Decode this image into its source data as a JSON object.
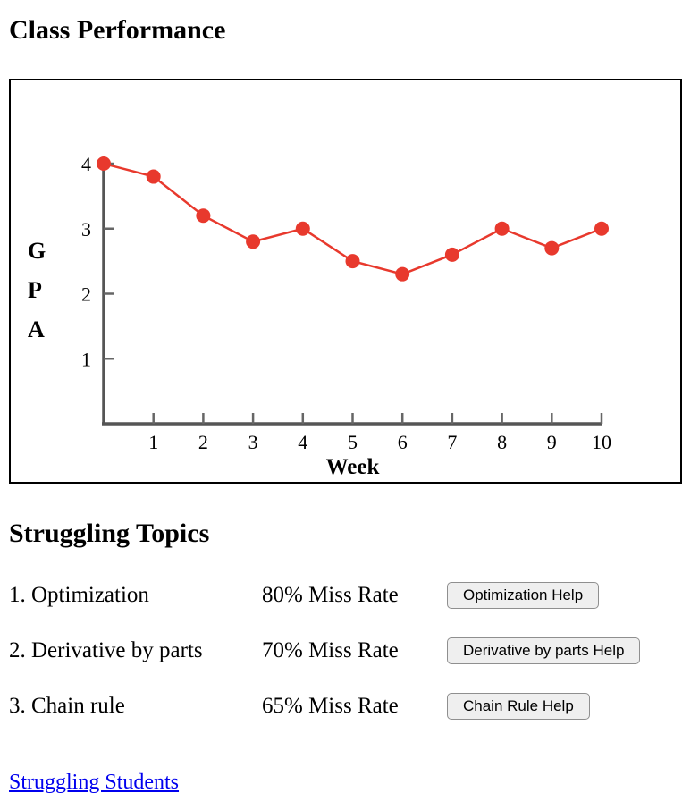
{
  "page": {
    "title": "Class Performance"
  },
  "chart_data": {
    "type": "line",
    "x": [
      0,
      1,
      2,
      3,
      4,
      5,
      6,
      7,
      8,
      9,
      10
    ],
    "values": [
      4.0,
      3.8,
      3.2,
      2.8,
      3.0,
      2.5,
      2.3,
      2.6,
      3.0,
      2.7,
      3.0
    ],
    "title": "",
    "xlabel": "Week",
    "ylabel": "GPA",
    "xlim": [
      0,
      10
    ],
    "ylim": [
      0,
      4
    ],
    "xticks": [
      1,
      2,
      3,
      4,
      5,
      6,
      7,
      8,
      9,
      10
    ],
    "yticks": [
      1,
      2,
      3,
      4
    ],
    "grid": false,
    "legend": false,
    "line_color": "#e8392d",
    "marker": "circle",
    "axis_color": "#555555"
  },
  "topics": {
    "heading": "Struggling Topics",
    "items": [
      {
        "label": "1. Optimization",
        "miss_rate": "80% Miss Rate",
        "button": "Optimization Help"
      },
      {
        "label": "2. Derivative by parts",
        "miss_rate": "70% Miss Rate",
        "button": "Derivative by parts Help"
      },
      {
        "label": "3. Chain rule",
        "miss_rate": "65% Miss Rate",
        "button": "Chain Rule Help"
      }
    ]
  },
  "footer": {
    "link_label": "Struggling Students"
  }
}
